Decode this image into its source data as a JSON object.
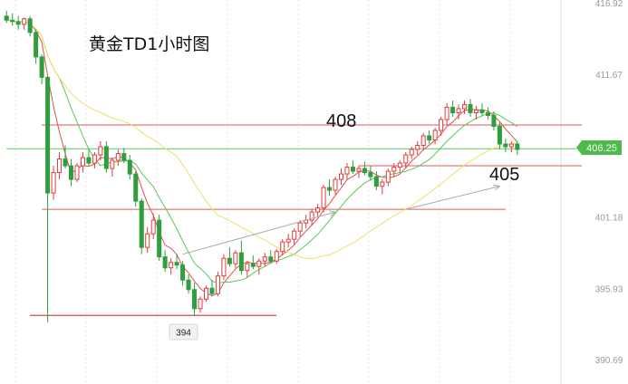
{
  "chart_data": {
    "type": "candlestick",
    "title": "黄金TD1小时图",
    "y_axis": {
      "ticks": [
        "416.92",
        "411.67",
        "406.25",
        "401.18",
        "395.93",
        "390.69"
      ],
      "range": [
        390.69,
        416.92
      ],
      "position": "right"
    },
    "current_price": "406.25",
    "annotations": {
      "resistance_label": "408",
      "support_label": "405",
      "low_label": "394"
    },
    "horizontal_lines": [
      {
        "name": "resistance-line",
        "price": 408.0,
        "color": "#e05a5a",
        "from_bar": 6,
        "to_bar": 98
      },
      {
        "name": "support-line",
        "price": 405.0,
        "color": "#e05a5a",
        "from_bar": 60,
        "to_bar": 98
      },
      {
        "name": "mid-line",
        "price": 401.8,
        "color": "#e05a5a",
        "from_bar": 6,
        "to_bar": 85
      },
      {
        "name": "low-line",
        "price": 394.0,
        "color": "#e05a5a",
        "from_bar": 4,
        "to_bar": 46
      },
      {
        "name": "current-price-line",
        "price": 406.25,
        "color": "#5cc85c",
        "from_bar": 0,
        "to_bar": 104
      }
    ],
    "trend_arrows": [
      {
        "from": [
          30,
          398.5
        ],
        "to": [
          56,
          401.6
        ],
        "color": "#aaaaaa"
      },
      {
        "from": [
          68,
          401.8
        ],
        "to": [
          84,
          403.5
        ],
        "color": "#aaaaaa"
      }
    ],
    "colors": {
      "up": "#e03c3c",
      "down": "#2e9e3e",
      "ma_fast": "#e05050",
      "ma_mid": "#5cc85c",
      "ma_slow": "#f0e060",
      "line": "#e05a5a"
    },
    "candles": [
      [
        416.0,
        416.4,
        415.5,
        415.7
      ],
      [
        415.7,
        416.2,
        415.3,
        415.6
      ],
      [
        415.6,
        416.0,
        415.0,
        415.4
      ],
      [
        415.4,
        415.9,
        415.0,
        415.8
      ],
      [
        415.8,
        416.0,
        414.5,
        414.8
      ],
      [
        414.8,
        415.0,
        412.5,
        413.0
      ],
      [
        413.0,
        413.2,
        411.0,
        411.5
      ],
      [
        411.5,
        411.6,
        393.5,
        403.0
      ],
      [
        403.0,
        405.0,
        402.5,
        404.5
      ],
      [
        404.5,
        406.0,
        404.0,
        405.5
      ],
      [
        405.5,
        406.5,
        404.8,
        405.0
      ],
      [
        405.0,
        405.5,
        403.5,
        404.0
      ],
      [
        404.0,
        405.2,
        403.8,
        405.0
      ],
      [
        405.0,
        406.0,
        404.5,
        405.6
      ],
      [
        405.6,
        406.2,
        405.0,
        405.2
      ],
      [
        405.2,
        406.0,
        404.8,
        405.8
      ],
      [
        405.8,
        406.8,
        405.4,
        406.4
      ],
      [
        406.4,
        406.8,
        404.5,
        404.8
      ],
      [
        404.8,
        405.6,
        404.2,
        405.4
      ],
      [
        405.4,
        406.2,
        405.0,
        405.9
      ],
      [
        405.9,
        406.3,
        405.2,
        405.4
      ],
      [
        405.4,
        405.8,
        404.0,
        404.4
      ],
      [
        404.4,
        404.6,
        402.0,
        402.4
      ],
      [
        402.4,
        402.6,
        398.5,
        399.0
      ],
      [
        399.0,
        400.5,
        398.6,
        400.0
      ],
      [
        400.0,
        401.5,
        399.6,
        401.0
      ],
      [
        401.0,
        401.4,
        398.0,
        398.3
      ],
      [
        398.3,
        398.8,
        397.2,
        397.5
      ],
      [
        397.5,
        398.2,
        397.0,
        397.9
      ],
      [
        397.9,
        398.5,
        397.4,
        397.7
      ],
      [
        397.7,
        398.0,
        396.2,
        396.6
      ],
      [
        396.6,
        397.0,
        395.6,
        395.9
      ],
      [
        395.9,
        396.4,
        394.0,
        394.5
      ],
      [
        394.5,
        395.4,
        394.2,
        395.2
      ],
      [
        395.2,
        396.2,
        395.0,
        396.0
      ],
      [
        396.0,
        396.6,
        395.4,
        395.6
      ],
      [
        395.6,
        397.2,
        395.4,
        396.9
      ],
      [
        396.9,
        398.5,
        396.6,
        398.2
      ],
      [
        398.2,
        399.0,
        397.6,
        397.8
      ],
      [
        397.8,
        398.8,
        397.5,
        398.6
      ],
      [
        398.6,
        399.5,
        397.0,
        397.3
      ],
      [
        397.3,
        398.0,
        396.8,
        397.8
      ],
      [
        397.8,
        398.4,
        397.4,
        397.6
      ],
      [
        397.6,
        398.2,
        397.0,
        398.0
      ],
      [
        398.0,
        398.6,
        397.6,
        398.3
      ],
      [
        398.3,
        398.8,
        397.8,
        398.0
      ],
      [
        398.0,
        398.9,
        397.8,
        398.7
      ],
      [
        398.7,
        399.6,
        398.4,
        399.4
      ],
      [
        399.4,
        400.0,
        399.0,
        399.6
      ],
      [
        399.6,
        400.4,
        399.2,
        400.2
      ],
      [
        400.2,
        401.0,
        399.8,
        400.8
      ],
      [
        400.8,
        401.4,
        400.4,
        401.0
      ],
      [
        401.0,
        401.8,
        400.6,
        401.6
      ],
      [
        401.6,
        402.2,
        401.2,
        401.9
      ],
      [
        401.9,
        403.6,
        401.6,
        403.4
      ],
      [
        403.4,
        404.0,
        402.8,
        403.2
      ],
      [
        403.2,
        404.2,
        402.9,
        404.0
      ],
      [
        404.0,
        404.8,
        403.6,
        404.4
      ],
      [
        404.4,
        405.2,
        404.0,
        404.9
      ],
      [
        404.9,
        405.4,
        404.4,
        404.6
      ],
      [
        404.6,
        405.0,
        404.1,
        404.8
      ],
      [
        404.8,
        405.3,
        404.3,
        404.5
      ],
      [
        404.5,
        405.0,
        403.9,
        404.2
      ],
      [
        404.2,
        404.6,
        403.2,
        403.5
      ],
      [
        403.5,
        404.0,
        402.9,
        403.8
      ],
      [
        403.8,
        404.8,
        403.5,
        404.6
      ],
      [
        404.6,
        405.2,
        404.2,
        404.9
      ],
      [
        404.9,
        405.4,
        404.5,
        405.2
      ],
      [
        405.2,
        406.0,
        404.8,
        405.8
      ],
      [
        405.8,
        406.4,
        405.5,
        406.2
      ],
      [
        406.2,
        406.8,
        405.8,
        406.5
      ],
      [
        406.5,
        407.4,
        406.2,
        407.2
      ],
      [
        407.2,
        407.6,
        406.6,
        406.9
      ],
      [
        406.9,
        407.8,
        406.6,
        407.6
      ],
      [
        407.6,
        408.6,
        407.2,
        408.4
      ],
      [
        408.4,
        409.6,
        408.0,
        409.3
      ],
      [
        409.3,
        409.8,
        408.6,
        408.9
      ],
      [
        408.9,
        409.5,
        408.4,
        409.2
      ],
      [
        409.2,
        409.8,
        408.8,
        409.5
      ],
      [
        409.5,
        409.9,
        408.6,
        408.9
      ],
      [
        408.9,
        409.4,
        408.4,
        409.1
      ],
      [
        409.1,
        409.6,
        408.7,
        408.9
      ],
      [
        408.9,
        409.3,
        408.4,
        408.7
      ],
      [
        408.7,
        409.0,
        407.6,
        407.9
      ],
      [
        407.9,
        408.2,
        406.2,
        406.6
      ],
      [
        406.6,
        407.0,
        406.0,
        406.4
      ],
      [
        406.4,
        406.8,
        406.0,
        406.6
      ],
      [
        406.6,
        406.8,
        405.8,
        406.2
      ]
    ],
    "legend": "none",
    "grid": "vertical-dotted"
  }
}
